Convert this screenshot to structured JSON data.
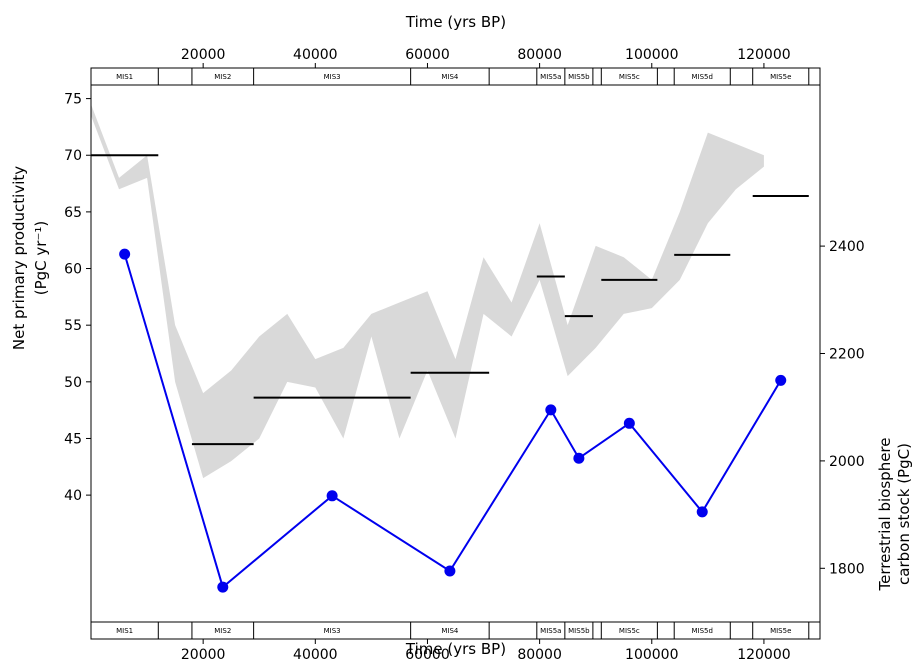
{
  "chart_data": {
    "type": "line",
    "title": "",
    "xlabel": "Time (yrs BP)",
    "xlabel_top": "Time (yrs BP)",
    "xlim": [
      0,
      130000
    ],
    "x_ticks": [
      20000,
      40000,
      60000,
      80000,
      100000,
      120000
    ],
    "npp_axis": {
      "ylabel_line1": "Net primary productivity",
      "ylabel_line2": "(PgC yr⁻¹)",
      "ylim": [
        28.8,
        76.2
      ],
      "ticks": [
        40,
        45,
        50,
        55,
        60,
        65,
        70,
        75
      ]
    },
    "carbon_axis": {
      "ylabel_line1": "Terrestrial biosphere",
      "ylabel_line2": "carbon stock (PgC)",
      "ylim": [
        1700,
        2700
      ],
      "ticks": [
        1800,
        2000,
        2200,
        2400
      ]
    },
    "mis_stages": [
      {
        "name": "MIS1",
        "start": 0,
        "end": 12000
      },
      {
        "name": "",
        "start": 12000,
        "end": 18000
      },
      {
        "name": "MIS2",
        "start": 18000,
        "end": 29000
      },
      {
        "name": "MIS3",
        "start": 29000,
        "end": 57000
      },
      {
        "name": "MIS4",
        "start": 57000,
        "end": 71000
      },
      {
        "name": "",
        "start": 71000,
        "end": 79500
      },
      {
        "name": "MIS5a",
        "start": 79500,
        "end": 84500
      },
      {
        "name": "MIS5b",
        "start": 84500,
        "end": 89500
      },
      {
        "name": "",
        "start": 89500,
        "end": 91000
      },
      {
        "name": "MIS5c",
        "start": 91000,
        "end": 101000
      },
      {
        "name": "",
        "start": 101000,
        "end": 104000
      },
      {
        "name": "MIS5d",
        "start": 104000,
        "end": 114000
      },
      {
        "name": "",
        "start": 114000,
        "end": 118000
      },
      {
        "name": "MIS5e",
        "start": 118000,
        "end": 128000
      },
      {
        "name": "",
        "start": 128000,
        "end": 130000
      }
    ],
    "npp_means": [
      {
        "start": 0,
        "end": 12000,
        "value": 70.0
      },
      {
        "start": 18000,
        "end": 29000,
        "value": 44.5
      },
      {
        "start": 29000,
        "end": 57000,
        "value": 48.6
      },
      {
        "start": 57000,
        "end": 71000,
        "value": 50.8
      },
      {
        "start": 79500,
        "end": 84500,
        "value": 59.3
      },
      {
        "start": 84500,
        "end": 89500,
        "value": 55.8
      },
      {
        "start": 91000,
        "end": 101000,
        "value": 59.0
      },
      {
        "start": 104000,
        "end": 114000,
        "value": 61.2
      },
      {
        "start": 118000,
        "end": 128000,
        "value": 66.4
      }
    ],
    "npp_range_upper": [
      [
        0,
        74.5
      ],
      [
        5000,
        68.0
      ],
      [
        10000,
        70.0
      ],
      [
        15000,
        55.0
      ],
      [
        20000,
        49.0
      ],
      [
        25000,
        51.0
      ],
      [
        30000,
        54.0
      ],
      [
        35000,
        56.0
      ],
      [
        40000,
        52.0
      ],
      [
        45000,
        53.0
      ],
      [
        50000,
        56.0
      ],
      [
        55000,
        57.0
      ],
      [
        60000,
        58.0
      ],
      [
        65000,
        52.0
      ],
      [
        70000,
        61.0
      ],
      [
        75000,
        57.0
      ],
      [
        80000,
        64.0
      ],
      [
        85000,
        55.0
      ],
      [
        90000,
        62.0
      ],
      [
        95000,
        61.0
      ],
      [
        100000,
        59.0
      ],
      [
        105000,
        65.0
      ],
      [
        110000,
        72.0
      ],
      [
        115000,
        71.0
      ],
      [
        120000,
        70.0
      ]
    ],
    "npp_range_lower": [
      [
        0,
        73.5
      ],
      [
        5000,
        67.0
      ],
      [
        10000,
        68.0
      ],
      [
        15000,
        50.0
      ],
      [
        20000,
        41.5
      ],
      [
        25000,
        43.0
      ],
      [
        30000,
        45.0
      ],
      [
        35000,
        50.0
      ],
      [
        40000,
        49.5
      ],
      [
        45000,
        45.0
      ],
      [
        50000,
        54.0
      ],
      [
        55000,
        45.0
      ],
      [
        60000,
        51.0
      ],
      [
        65000,
        45.0
      ],
      [
        70000,
        56.0
      ],
      [
        75000,
        54.0
      ],
      [
        80000,
        59.0
      ],
      [
        85000,
        50.5
      ],
      [
        90000,
        53.0
      ],
      [
        95000,
        56.0
      ],
      [
        100000,
        56.5
      ],
      [
        105000,
        59.0
      ],
      [
        110000,
        64.0
      ],
      [
        115000,
        67.0
      ],
      [
        120000,
        69.0
      ]
    ],
    "carbon_stock": {
      "x": [
        6000,
        23500,
        43000,
        64000,
        82000,
        87000,
        96000,
        109000,
        123000
      ],
      "y": [
        2385,
        1765,
        1935,
        1795,
        2095,
        2005,
        2070,
        1905,
        2150
      ]
    },
    "colors": {
      "band": "#d9d9d9",
      "mean_line": "#000000",
      "carbon_line": "#0000ee"
    }
  }
}
